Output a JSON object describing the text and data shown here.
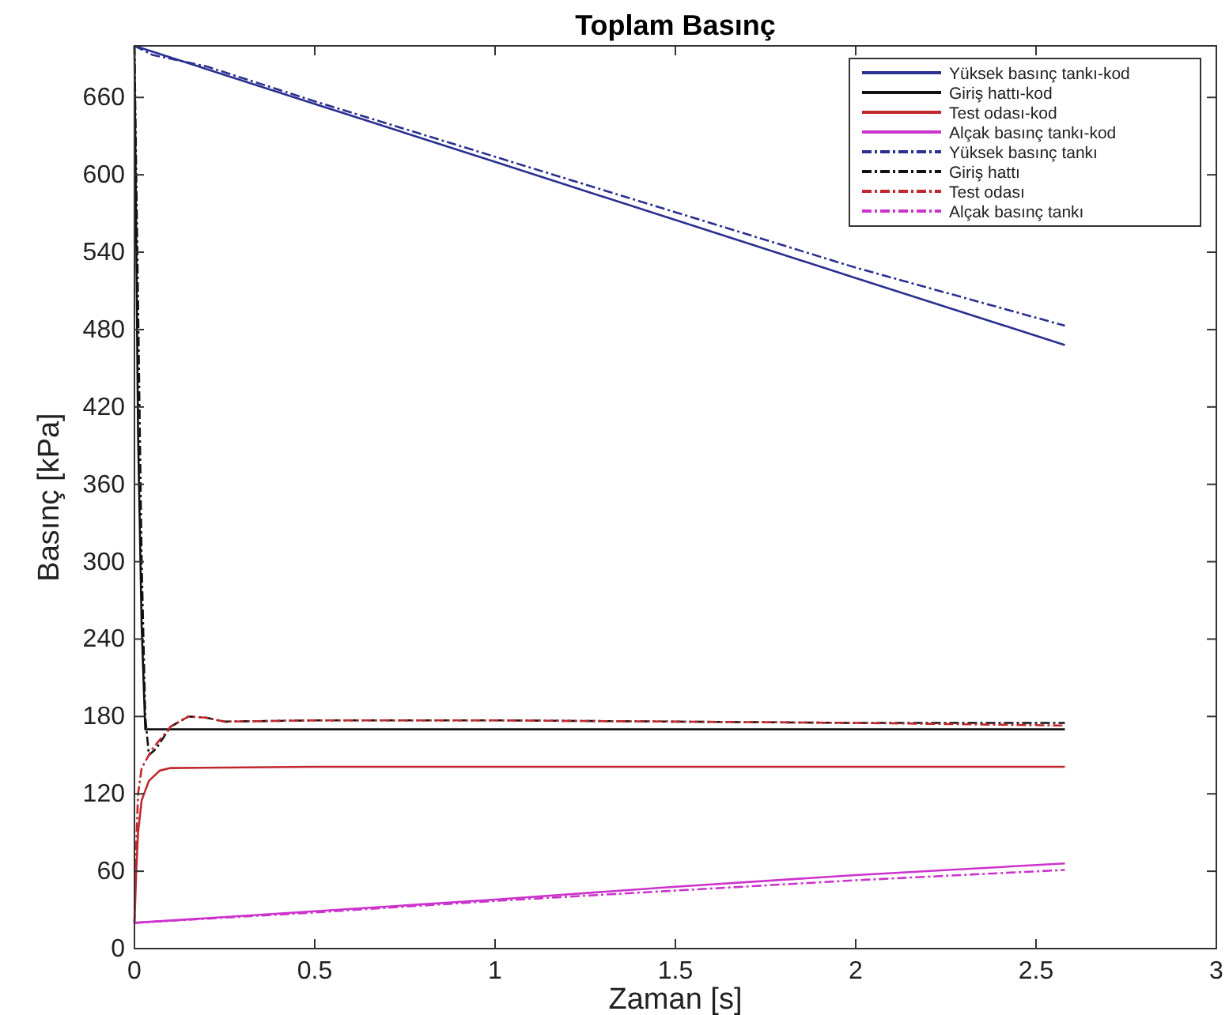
{
  "chart_data": {
    "type": "line",
    "title": "Toplam Basınç",
    "xlabel": "Zaman [s]",
    "ylabel": "Basınç [kPa]",
    "xlim": [
      0,
      3
    ],
    "ylim": [
      0,
      700
    ],
    "xticks": [
      0,
      0.5,
      1,
      1.5,
      2,
      2.5,
      3
    ],
    "yticks": [
      0,
      60,
      120,
      180,
      240,
      300,
      360,
      420,
      480,
      540,
      600,
      660
    ],
    "grid": false,
    "legend": "top right",
    "marker": "none",
    "series": [
      {
        "name": "Yüksek basınç tankı-kod",
        "color": "#2b2f8f",
        "line_style": "solid",
        "x": [
          0,
          0.5,
          1,
          1.5,
          2,
          2.58
        ],
        "values": [
          700,
          655,
          610,
          565,
          520,
          468
        ]
      },
      {
        "name": "Giriş hattı-kod",
        "color": "#111111",
        "line_style": "solid",
        "x": [
          0,
          0.005,
          0.01,
          0.02,
          0.03,
          0.5,
          1,
          1.5,
          2,
          2.58
        ],
        "values": [
          700,
          550,
          400,
          250,
          170,
          170,
          170,
          170,
          170,
          170
        ]
      },
      {
        "name": "Test odası-kod",
        "color": "#c0282d",
        "line_style": "solid",
        "x": [
          0,
          0.005,
          0.01,
          0.02,
          0.04,
          0.07,
          0.1,
          0.5,
          1,
          1.5,
          2,
          2.58
        ],
        "values": [
          20,
          60,
          90,
          115,
          130,
          138,
          140,
          141,
          141,
          141,
          141,
          141
        ]
      },
      {
        "name": "Alçak basınç tankı-kod",
        "color": "#cc33cc",
        "line_style": "solid",
        "x": [
          0,
          0.5,
          1,
          1.5,
          2,
          2.58
        ],
        "values": [
          20,
          29,
          38,
          48,
          57,
          66
        ]
      },
      {
        "name": "Yüksek basınç tankı",
        "color": "#2b2f8f",
        "line_style": "dashed",
        "x": [
          0,
          0.05,
          0.1,
          0.2,
          0.5,
          1,
          1.5,
          2,
          2.58
        ],
        "values": [
          700,
          693,
          690,
          684,
          657,
          614,
          571,
          528,
          483
        ]
      },
      {
        "name": "Giriş hattı",
        "color": "#111111",
        "line_style": "dashed",
        "x": [
          0,
          0.01,
          0.02,
          0.03,
          0.04,
          0.06,
          0.1,
          0.15,
          0.2,
          0.25,
          0.5,
          1,
          1.5,
          2,
          2.58
        ],
        "values": [
          700,
          500,
          300,
          180,
          150,
          155,
          172,
          180,
          179,
          176,
          177,
          177,
          176,
          175,
          175
        ]
      },
      {
        "name": "Test odası",
        "color": "#c0282d",
        "line_style": "dashed",
        "x": [
          0,
          0.005,
          0.01,
          0.02,
          0.03,
          0.05,
          0.1,
          0.15,
          0.2,
          0.25,
          0.5,
          1,
          1.5,
          2,
          2.58
        ],
        "values": [
          20,
          80,
          120,
          140,
          145,
          155,
          172,
          180,
          179,
          176,
          177,
          177,
          176,
          175,
          173
        ]
      },
      {
        "name": "Alçak basınç tankı",
        "color": "#cc33cc",
        "line_style": "dashed",
        "x": [
          0,
          0.5,
          1,
          1.5,
          2,
          2.58
        ],
        "values": [
          20,
          28,
          37,
          45,
          53,
          61
        ]
      }
    ]
  }
}
